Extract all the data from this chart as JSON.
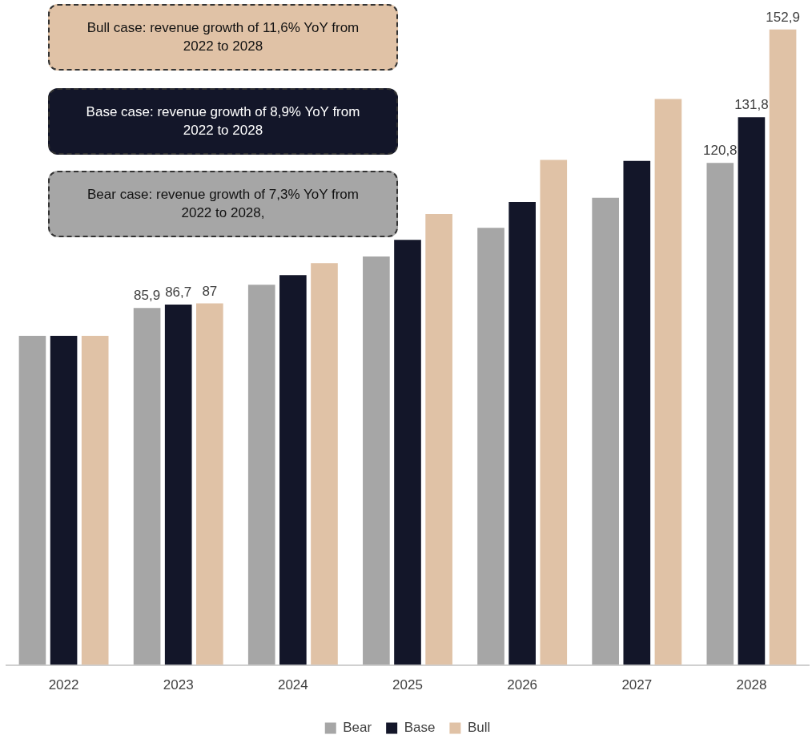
{
  "chart_data": {
    "type": "bar",
    "categories": [
      "2022",
      "2023",
      "2024",
      "2025",
      "2026",
      "2027",
      "2028"
    ],
    "series": [
      {
        "name": "Bear",
        "color": "#a6a6a6",
        "values": [
          79.2,
          85.9,
          91.5,
          98.3,
          105.2,
          112.4,
          120.8
        ],
        "value_labels": [
          null,
          "85,9",
          null,
          null,
          null,
          null,
          "120,8"
        ]
      },
      {
        "name": "Base",
        "color": "#131629",
        "values": [
          79.2,
          86.7,
          93.8,
          102.3,
          111.4,
          121.3,
          131.8
        ],
        "value_labels": [
          null,
          "86,7",
          null,
          null,
          null,
          null,
          "131,8"
        ]
      },
      {
        "name": "Bull",
        "color": "#e0c2a6",
        "values": [
          79.2,
          87,
          96.7,
          108.5,
          121.5,
          136.2,
          152.9
        ],
        "value_labels": [
          null,
          "87",
          null,
          null,
          null,
          null,
          "152,9"
        ]
      }
    ],
    "annotations": [
      "Bull case: revenue growth of 11,6% YoY from 2022 to 2028",
      "Base case: revenue growth of 8,9% YoY from 2022 to 2028",
      "Bear case: revenue growth of 7,3% YoY from 2022 to 2028,"
    ],
    "legend": "bottom",
    "grid": false,
    "tick_labels": "x"
  }
}
